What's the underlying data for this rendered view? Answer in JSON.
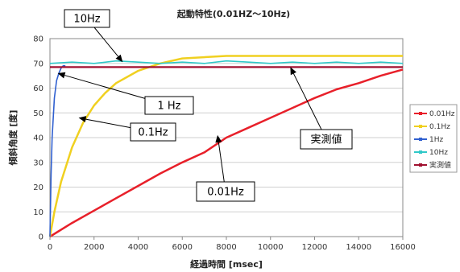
{
  "chart_data": {
    "type": "line",
    "title": "起動特性(0.01HZ～10Hz)",
    "xlabel": "経過時間 [msec]",
    "ylabel": "傾斜角度 [度]",
    "xlim": [
      0,
      16000
    ],
    "ylim": [
      0,
      80
    ],
    "x_ticks": [
      0,
      2000,
      4000,
      6000,
      8000,
      10000,
      12000,
      14000,
      16000
    ],
    "y_ticks": [
      0,
      10,
      20,
      30,
      40,
      50,
      60,
      70,
      80
    ],
    "grid": "horizontal",
    "legend_position": "right",
    "series": [
      {
        "name": "0.01Hz",
        "color": "#e8202a",
        "x": [
          0,
          1000,
          2000,
          3000,
          4000,
          5000,
          6000,
          7000,
          8000,
          9000,
          10000,
          11000,
          12000,
          13000,
          14000,
          15000,
          16000
        ],
        "y": [
          0,
          5.5,
          10.5,
          15.5,
          20.5,
          25.5,
          30,
          34,
          40,
          44,
          48,
          52,
          56,
          59.5,
          62,
          65,
          67.5
        ]
      },
      {
        "name": "0.1Hz",
        "color": "#f0d020",
        "x": [
          0,
          200,
          500,
          1000,
          1500,
          2000,
          2500,
          3000,
          4000,
          5000,
          6000,
          8000,
          10000,
          12000,
          14000,
          16000
        ],
        "y": [
          0,
          10,
          22,
          36,
          46,
          53,
          58,
          62,
          67,
          70,
          72,
          73,
          73,
          73,
          73,
          73
        ]
      },
      {
        "name": "1Hz",
        "color": "#3060d0",
        "x": [
          0,
          50,
          100,
          200,
          300,
          400,
          500,
          600,
          700
        ],
        "y": [
          0,
          25,
          40,
          56,
          63,
          66,
          68,
          69,
          69
        ]
      },
      {
        "name": "10Hz",
        "color": "#30c8c8",
        "x": [
          0,
          1000,
          2000,
          3000,
          4000,
          5000,
          6000,
          7000,
          8000,
          9000,
          10000,
          11000,
          12000,
          13000,
          14000,
          15000,
          16000
        ],
        "y": [
          70,
          70.5,
          70,
          71,
          70.5,
          70,
          70.5,
          70,
          71,
          70.5,
          70,
          70.5,
          70,
          70.5,
          70,
          70.5,
          70
        ]
      },
      {
        "name": "実測値",
        "color": "#a01030",
        "x": [
          0,
          16000
        ],
        "y": [
          68.5,
          68.5
        ]
      }
    ],
    "annotations": [
      {
        "text": "10Hz",
        "point": [
          3300,
          70.5
        ]
      },
      {
        "text": "1 Hz",
        "point": [
          350,
          66
        ]
      },
      {
        "text": "0.1Hz",
        "point": [
          1300,
          48
        ]
      },
      {
        "text": "実測値",
        "point": [
          10900,
          68.5
        ]
      },
      {
        "text": "0.01Hz",
        "point": [
          7600,
          41
        ]
      }
    ]
  }
}
